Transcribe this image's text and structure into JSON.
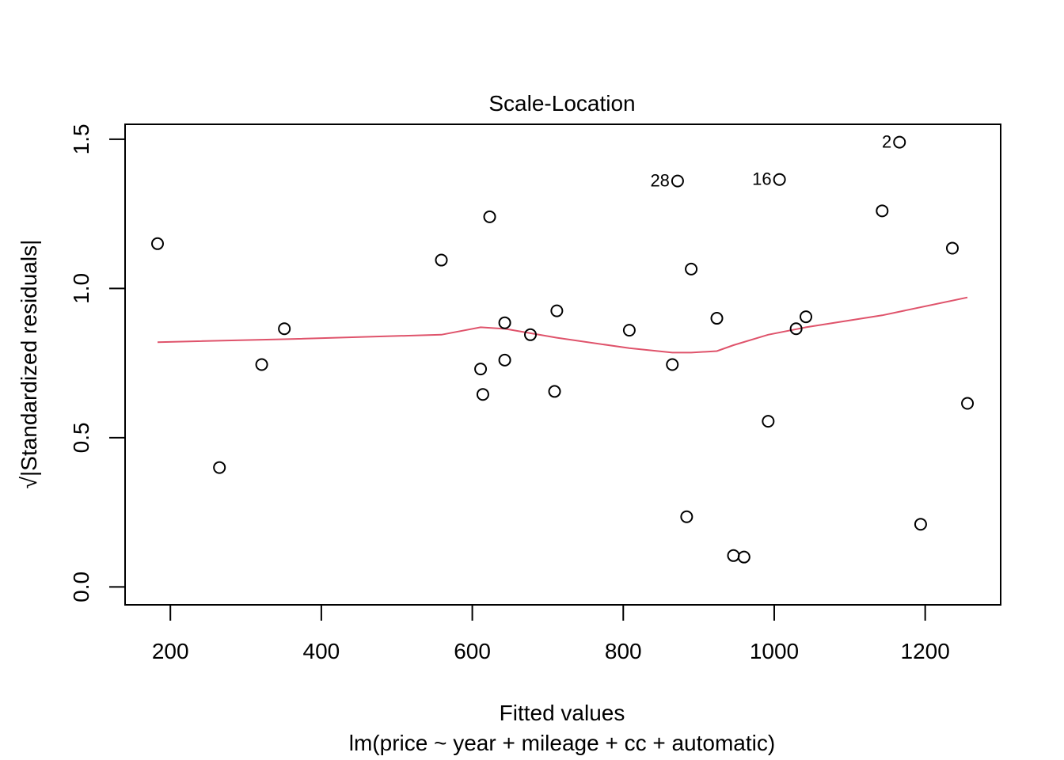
{
  "chart_data": {
    "type": "scatter",
    "title": "Scale-Location",
    "xlabel": "Fitted values",
    "subtitle": "lm(price ~ year + mileage + cc + automatic)",
    "ylabel": "√|Standardized residuals|",
    "xlim": [
      140,
      1300
    ],
    "ylim": [
      -0.06,
      1.55
    ],
    "xticks": [
      200,
      400,
      600,
      800,
      1000,
      1200
    ],
    "yticks": [
      0.0,
      0.5,
      1.0,
      1.5
    ],
    "xtick_labels": [
      "200",
      "400",
      "600",
      "800",
      "1000",
      "1200"
    ],
    "ytick_labels": [
      "0.0",
      "0.5",
      "1.0",
      "1.5"
    ],
    "grid": false,
    "points": [
      {
        "x": 183,
        "y": 1.15
      },
      {
        "x": 265,
        "y": 0.4
      },
      {
        "x": 321,
        "y": 0.745
      },
      {
        "x": 351,
        "y": 0.865
      },
      {
        "x": 559,
        "y": 1.095
      },
      {
        "x": 611,
        "y": 0.73
      },
      {
        "x": 614,
        "y": 0.645
      },
      {
        "x": 623,
        "y": 1.24
      },
      {
        "x": 643,
        "y": 0.885
      },
      {
        "x": 643,
        "y": 0.76
      },
      {
        "x": 677,
        "y": 0.845
      },
      {
        "x": 709,
        "y": 0.655
      },
      {
        "x": 712,
        "y": 0.925
      },
      {
        "x": 808,
        "y": 0.86
      },
      {
        "x": 865,
        "y": 0.745
      },
      {
        "x": 872,
        "y": 1.36,
        "label": "28"
      },
      {
        "x": 884,
        "y": 0.235
      },
      {
        "x": 890,
        "y": 1.065
      },
      {
        "x": 924,
        "y": 0.9
      },
      {
        "x": 946,
        "y": 0.105
      },
      {
        "x": 960,
        "y": 0.1
      },
      {
        "x": 992,
        "y": 0.555
      },
      {
        "x": 1007,
        "y": 1.365,
        "label": "16"
      },
      {
        "x": 1029,
        "y": 0.865
      },
      {
        "x": 1042,
        "y": 0.905
      },
      {
        "x": 1143,
        "y": 1.26
      },
      {
        "x": 1166,
        "y": 1.49,
        "label": "2"
      },
      {
        "x": 1194,
        "y": 0.21
      },
      {
        "x": 1236,
        "y": 1.135
      },
      {
        "x": 1256,
        "y": 0.615
      }
    ],
    "smooth_line": {
      "color": "#DF536B",
      "x": [
        183,
        350,
        559,
        611,
        643,
        677,
        712,
        808,
        865,
        890,
        924,
        946,
        992,
        1042,
        1143,
        1256
      ],
      "y": [
        0.82,
        0.83,
        0.845,
        0.87,
        0.865,
        0.85,
        0.835,
        0.8,
        0.785,
        0.785,
        0.79,
        0.81,
        0.845,
        0.87,
        0.91,
        0.97
      ]
    },
    "point_color": "#000000",
    "frame_color": "#000000"
  }
}
